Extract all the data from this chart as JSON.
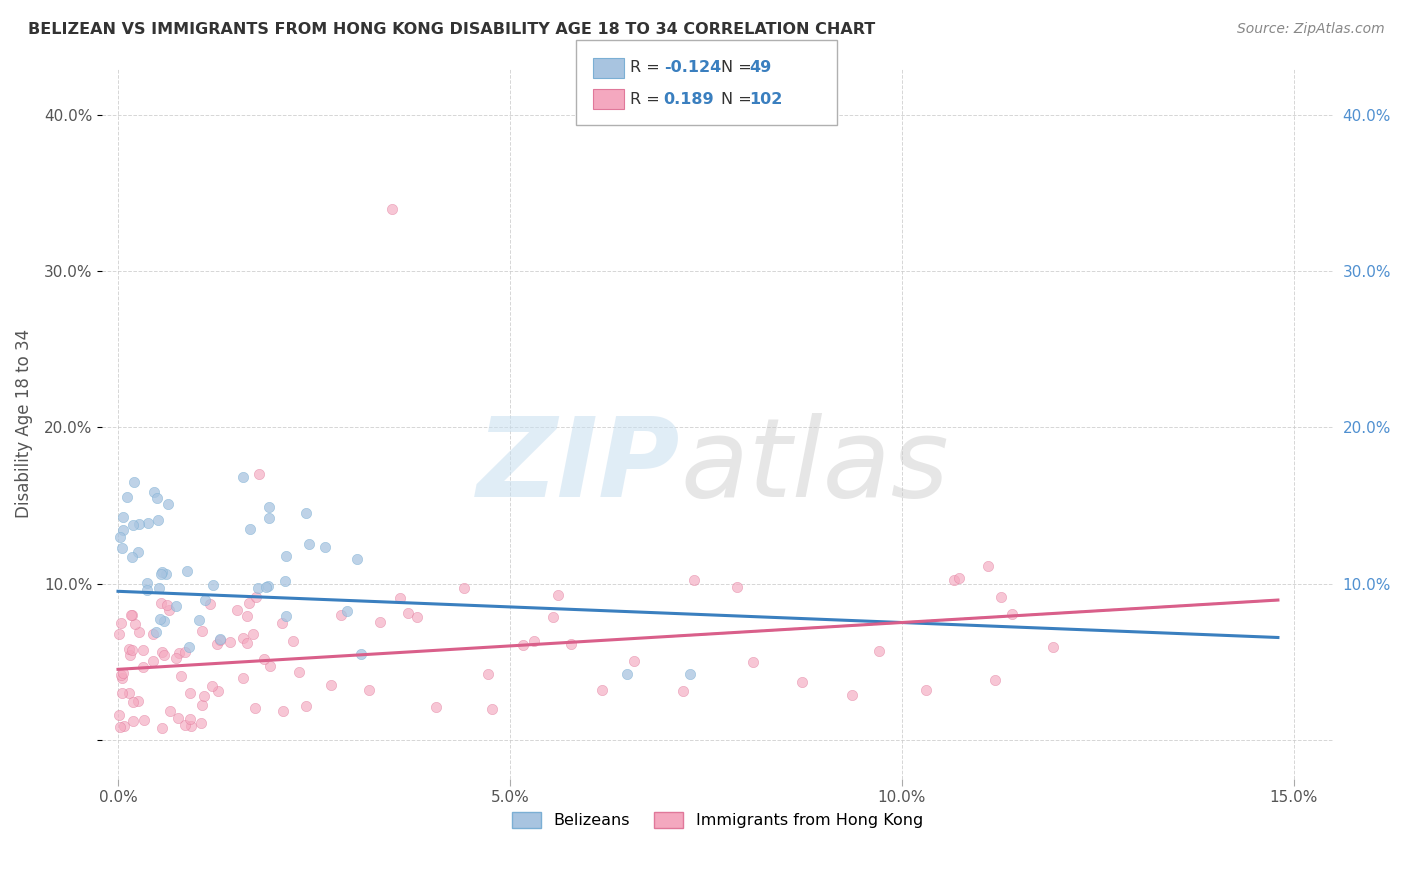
{
  "title": "BELIZEAN VS IMMIGRANTS FROM HONG KONG DISABILITY AGE 18 TO 34 CORRELATION CHART",
  "source": "Source: ZipAtlas.com",
  "ylabel": "Disability Age 18 to 34",
  "R_blue": -0.124,
  "N_blue": 49,
  "R_pink": 0.189,
  "N_pink": 102,
  "blue_scatter_face": "#a8c4e0",
  "blue_scatter_edge": "#7bafd4",
  "pink_scatter_face": "#f4a8bf",
  "pink_scatter_edge": "#e0789a",
  "blue_line_color": "#3a7fbf",
  "pink_line_color": "#d95f8a",
  "xlim_min": -0.002,
  "xlim_max": 0.155,
  "ylim_min": -0.025,
  "ylim_max": 0.43,
  "xticks": [
    0.0,
    0.05,
    0.1,
    0.15
  ],
  "xtick_labels": [
    "0.0%",
    "5.0%",
    "10.0%",
    "15.0%"
  ],
  "yticks": [
    0.0,
    0.1,
    0.2,
    0.3,
    0.4
  ],
  "ytick_labels": [
    "",
    "10.0%",
    "20.0%",
    "30.0%",
    "40.0%"
  ],
  "grid_color": "#cccccc",
  "title_color": "#333333",
  "source_color": "#888888",
  "label_color": "#555555",
  "right_tick_color": "#5090d0",
  "legend_label_blue": "Belizeans",
  "legend_label_pink": "Immigrants from Hong Kong"
}
